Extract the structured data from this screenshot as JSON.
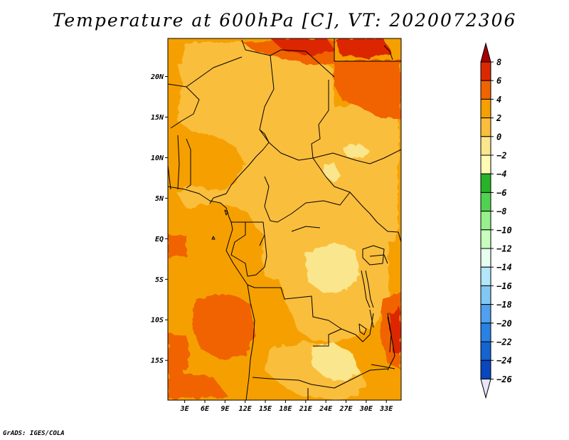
{
  "title": "Temperature at 600hPa [C], VT: 2020072306",
  "credit": "GrADS: IGES/COLA",
  "chart_data": {
    "type": "heatmap",
    "title": "Temperature at 600hPa [C], VT: 2020072306",
    "variable": "Temperature",
    "level": "600hPa",
    "units": "C",
    "valid_time": "2020072306",
    "x_axis": {
      "ticks": [
        3,
        6,
        9,
        12,
        15,
        18,
        21,
        24,
        27,
        30,
        33
      ],
      "tick_labels": [
        "3E",
        "6E",
        "9E",
        "12E",
        "15E",
        "18E",
        "21E",
        "24E",
        "27E",
        "30E",
        "33E"
      ],
      "range": [
        0.5,
        35.2
      ]
    },
    "y_axis": {
      "ticks": [
        20,
        15,
        10,
        5,
        0,
        -5,
        -10,
        -15
      ],
      "tick_labels": [
        "20N",
        "15N",
        "10N",
        "5N",
        "EQ",
        "5S",
        "10S",
        "15S"
      ],
      "range": [
        -19.9,
        24.7
      ]
    },
    "colorbar": {
      "levels": [
        8,
        6,
        4,
        2,
        0,
        -2,
        -4,
        -6,
        -8,
        -10,
        -12,
        -14,
        -16,
        -18,
        -20,
        -22,
        -24,
        -26
      ],
      "labels": [
        "8",
        "6",
        "4",
        "2",
        "0",
        "−2",
        "−4",
        "−6",
        "−8",
        "−10",
        "−12",
        "−14",
        "−16",
        "−18",
        "−20",
        "−22",
        "−24",
        "−26"
      ],
      "colors": [
        "#a50000",
        "#dc2800",
        "#f06400",
        "#f5a000",
        "#fabe3c",
        "#fae68c",
        "#fffab4",
        "#28b428",
        "#50d250",
        "#96f08c",
        "#c8ffbe",
        "#e6fff0",
        "#b4e6fa",
        "#82c8f5",
        "#50a0f0",
        "#2882e6",
        "#1464d2",
        "#0a46be",
        "#00008c",
        "#e6e6fa"
      ],
      "extends": "both"
    },
    "field_regions": [
      {
        "description_value": "2 to 4",
        "color": "#f5a000"
      },
      {
        "description_value": "0 to 2",
        "color": "#fabe3c"
      },
      {
        "description_value": "-2 to 0",
        "color": "#fae68c"
      },
      {
        "description_value": "4 to 6",
        "color": "#f06400"
      },
      {
        "description_value": "6 to 8",
        "color": "#dc2800"
      }
    ]
  }
}
